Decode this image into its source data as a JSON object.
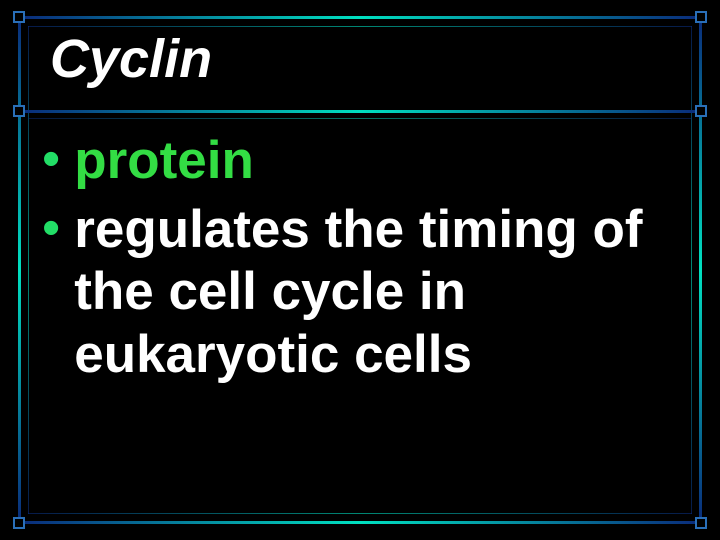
{
  "slide": {
    "title": "Cyclin",
    "title_color": "#ffffff",
    "title_fontsize": 54,
    "title_italic": true,
    "title_bold": true,
    "background_color": "#000000",
    "border_gradient": [
      "#0a2a7a",
      "#00e0c0",
      "#0a2a7a"
    ],
    "corner_square_color": "#2a6fb8",
    "bullets": [
      {
        "text": "protein",
        "color": "#33dd44",
        "bullet_color": "#22dd66",
        "fontsize": 53,
        "bold": true
      },
      {
        "text": "regulates the timing of the cell cycle in eukaryotic cells",
        "color": "#ffffff",
        "bullet_color": "#22dd66",
        "fontsize": 53,
        "bold": true
      }
    ],
    "bullet_glyph": "•"
  }
}
